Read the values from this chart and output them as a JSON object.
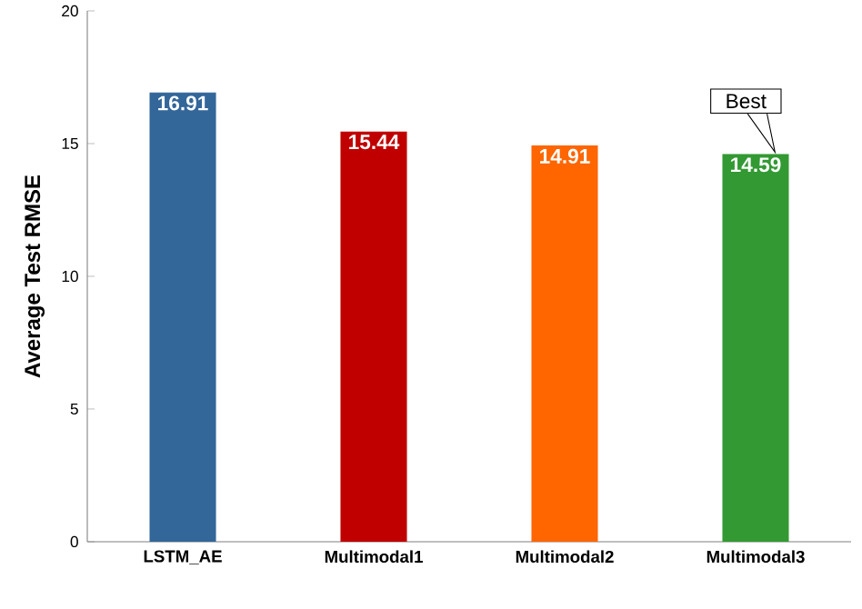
{
  "chart_data": {
    "type": "bar",
    "ylabel": "Average Test RMSE",
    "categories": [
      "LSTM_AE",
      "Multimodal1",
      "Multimodal2",
      "Multimodal3"
    ],
    "values": [
      16.91,
      15.44,
      14.91,
      14.59
    ],
    "colors": [
      "#336699",
      "#c00000",
      "#ff6600",
      "#339933"
    ],
    "ylim": [
      0,
      20
    ],
    "yticks": [
      0,
      5,
      10,
      15,
      20
    ],
    "grid": false,
    "data_labels": true,
    "annotations": [
      {
        "text": "Best",
        "x": "Multimodal3",
        "y": 14.59
      }
    ]
  }
}
